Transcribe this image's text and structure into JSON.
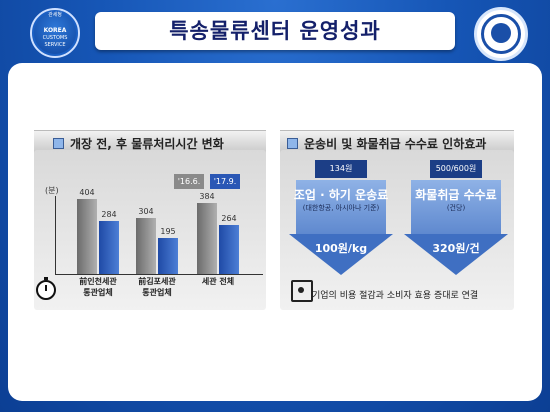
{
  "header": {
    "title": "특송물류센터 운영성과",
    "logo_left": {
      "top": "관세청",
      "mid": "KOREA",
      "b1": "CUSTOMS",
      "b2": "SERVICE"
    }
  },
  "left_section": {
    "title": "개장 전, 후 물류처리시간 변화",
    "unit": "(분)",
    "legend": {
      "before": "'16.6.",
      "after": "'17.9."
    },
    "chart_data": {
      "type": "bar",
      "categories": [
        "前인천세관\n통관업체",
        "前김포세관\n통관업체",
        "세관 전체"
      ],
      "series": [
        {
          "name": "'16.6.",
          "values": [
            404,
            304,
            384
          ]
        },
        {
          "name": "'17.9.",
          "values": [
            284,
            195,
            264
          ]
        }
      ]
    }
  },
  "right_section": {
    "title": "운송비 및 화물취급 수수료 인하효과",
    "items": [
      {
        "head": "134원",
        "main": "조업 · 하기 운송료",
        "sub": "(대한항공, 아시아나 기준)",
        "value": "100원/kg"
      },
      {
        "head": "500/600원",
        "main": "화물취급 수수료",
        "sub": "(건당)",
        "value": "320원/건"
      }
    ],
    "note": "기업의 비용 절감과 소비자 효용 증대로 연결"
  }
}
